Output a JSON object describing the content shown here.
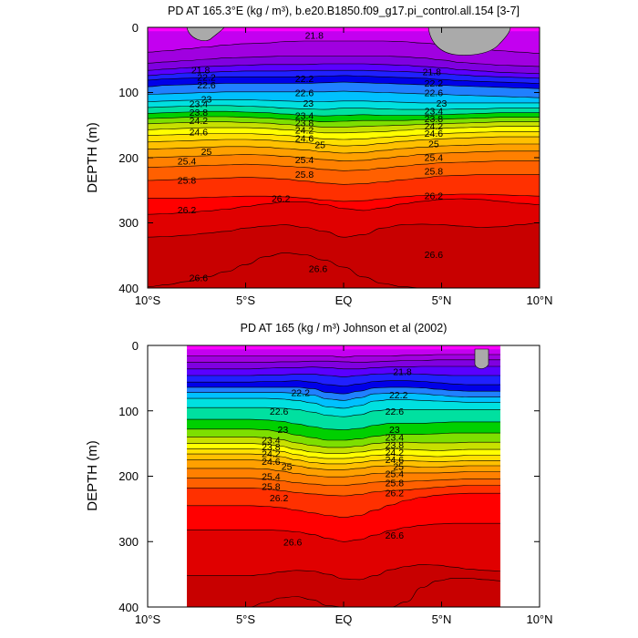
{
  "colors": {
    "bands": [
      "#ff00ff",
      "#c300f0",
      "#a000e0",
      "#8000e0",
      "#5a00ff",
      "#2020ff",
      "#0000e8",
      "#2080ff",
      "#00c0ff",
      "#00e0e0",
      "#00e0a0",
      "#00d000",
      "#7ddf00",
      "#c8e000",
      "#ffff00",
      "#ffe000",
      "#ffc000",
      "#ffa000",
      "#ff8000",
      "#ff6000",
      "#ff3000",
      "#ff0000",
      "#e00000",
      "#c80000"
    ],
    "land": "#aaaaaa"
  },
  "chart_data": [
    {
      "type": "contour",
      "title": "PD AT 165.3°E (kg / m³), b.e20.B1850.f09_g17.pi_control.all.154 [3-7]",
      "xlabel": "",
      "ylabel": "DEPTH (m)",
      "x_ticks": [
        "10°S",
        "5°S",
        "EQ",
        "5°N",
        "10°N"
      ],
      "y_ticks": [
        "0",
        "100",
        "200",
        "300",
        "400"
      ],
      "xlim": [
        -10,
        10
      ],
      "ylim": [
        400,
        0
      ],
      "data_xlim": [
        -10,
        10
      ],
      "contour_interval": 0.2,
      "contour_labels": [
        {
          "text": "21.8",
          "lat": -1.5,
          "depth": 12
        },
        {
          "text": "21.8",
          "lat": -7.3,
          "depth": 65
        },
        {
          "text": "21.8",
          "lat": 4.5,
          "depth": 68
        },
        {
          "text": "22.2",
          "lat": -7.0,
          "depth": 76
        },
        {
          "text": "22.2",
          "lat": -2.0,
          "depth": 78
        },
        {
          "text": "22.2",
          "lat": 4.6,
          "depth": 85
        },
        {
          "text": "22.6",
          "lat": -7.0,
          "depth": 88
        },
        {
          "text": "22.6",
          "lat": -2.0,
          "depth": 100
        },
        {
          "text": "22.6",
          "lat": 4.6,
          "depth": 100
        },
        {
          "text": "23",
          "lat": -7.0,
          "depth": 110
        },
        {
          "text": "23",
          "lat": -1.8,
          "depth": 116
        },
        {
          "text": "23",
          "lat": 5.0,
          "depth": 116
        },
        {
          "text": "23.4",
          "lat": -7.4,
          "depth": 117
        },
        {
          "text": "23.4",
          "lat": -2.0,
          "depth": 135
        },
        {
          "text": "23.4",
          "lat": 4.6,
          "depth": 128
        },
        {
          "text": "23.8",
          "lat": -7.4,
          "depth": 130
        },
        {
          "text": "23.8",
          "lat": -2.0,
          "depth": 146
        },
        {
          "text": "23.8",
          "lat": 4.6,
          "depth": 140
        },
        {
          "text": "24.2",
          "lat": -7.4,
          "depth": 143
        },
        {
          "text": "24.2",
          "lat": -2.0,
          "depth": 157
        },
        {
          "text": "24.2",
          "lat": 4.6,
          "depth": 151
        },
        {
          "text": "24.6",
          "lat": -7.4,
          "depth": 160
        },
        {
          "text": "24.6",
          "lat": -2.0,
          "depth": 170
        },
        {
          "text": "24.6",
          "lat": 4.6,
          "depth": 162
        },
        {
          "text": "25",
          "lat": -7.0,
          "depth": 190
        },
        {
          "text": "25",
          "lat": -1.2,
          "depth": 180
        },
        {
          "text": "25",
          "lat": 4.6,
          "depth": 178
        },
        {
          "text": "25.4",
          "lat": -8.0,
          "depth": 205
        },
        {
          "text": "25.4",
          "lat": -2.0,
          "depth": 203
        },
        {
          "text": "25.4",
          "lat": 4.6,
          "depth": 199
        },
        {
          "text": "25.8",
          "lat": -8.0,
          "depth": 234
        },
        {
          "text": "25.8",
          "lat": -2.0,
          "depth": 225
        },
        {
          "text": "25.8",
          "lat": 4.6,
          "depth": 220
        },
        {
          "text": "26.2",
          "lat": -3.2,
          "depth": 262
        },
        {
          "text": "26.2",
          "lat": 4.6,
          "depth": 258
        },
        {
          "text": "26.2",
          "lat": -8.0,
          "depth": 280
        },
        {
          "text": "26.6",
          "lat": 4.6,
          "depth": 348
        },
        {
          "text": "26.6",
          "lat": -1.3,
          "depth": 370
        },
        {
          "text": "26.6",
          "lat": -7.4,
          "depth": 384
        }
      ]
    },
    {
      "type": "contour",
      "title": "PD AT 165 (kg / m³) Johnson et al (2002)",
      "xlabel": "",
      "ylabel": "DEPTH (m)",
      "x_ticks": [
        "10°S",
        "5°S",
        "EQ",
        "5°N",
        "10°N"
      ],
      "y_ticks": [
        "0",
        "100",
        "200",
        "300",
        "400"
      ],
      "xlim": [
        -10,
        10
      ],
      "ylim": [
        400,
        0
      ],
      "data_xlim": [
        -8,
        8
      ],
      "contour_interval": 0.2,
      "contour_labels": [
        {
          "text": "21.8",
          "lat": 3.0,
          "depth": 40
        },
        {
          "text": "22.2",
          "lat": -2.2,
          "depth": 72
        },
        {
          "text": "22.2",
          "lat": 2.8,
          "depth": 75
        },
        {
          "text": "22.6",
          "lat": -3.3,
          "depth": 100
        },
        {
          "text": "22.6",
          "lat": 2.6,
          "depth": 100
        },
        {
          "text": "23",
          "lat": -3.1,
          "depth": 128
        },
        {
          "text": "23",
          "lat": 2.6,
          "depth": 128
        },
        {
          "text": "23.4",
          "lat": -3.7,
          "depth": 144
        },
        {
          "text": "23.4",
          "lat": 2.6,
          "depth": 140
        },
        {
          "text": "23.8",
          "lat": -3.7,
          "depth": 155
        },
        {
          "text": "23.8",
          "lat": 2.6,
          "depth": 152
        },
        {
          "text": "24.2",
          "lat": -3.7,
          "depth": 165
        },
        {
          "text": "24.2",
          "lat": 2.6,
          "depth": 163
        },
        {
          "text": "24.6",
          "lat": -3.7,
          "depth": 177
        },
        {
          "text": "24.6",
          "lat": 2.6,
          "depth": 174
        },
        {
          "text": "25",
          "lat": -2.9,
          "depth": 185
        },
        {
          "text": "25",
          "lat": 2.8,
          "depth": 185
        },
        {
          "text": "25.4",
          "lat": -3.7,
          "depth": 200
        },
        {
          "text": "25.4",
          "lat": 2.6,
          "depth": 196
        },
        {
          "text": "25.8",
          "lat": -3.7,
          "depth": 215
        },
        {
          "text": "25.8",
          "lat": 2.6,
          "depth": 210
        },
        {
          "text": "26.2",
          "lat": -3.3,
          "depth": 233
        },
        {
          "text": "26.2",
          "lat": 2.6,
          "depth": 225
        },
        {
          "text": "26.6",
          "lat": -2.6,
          "depth": 300
        },
        {
          "text": "26.6",
          "lat": 2.6,
          "depth": 290
        }
      ]
    }
  ]
}
